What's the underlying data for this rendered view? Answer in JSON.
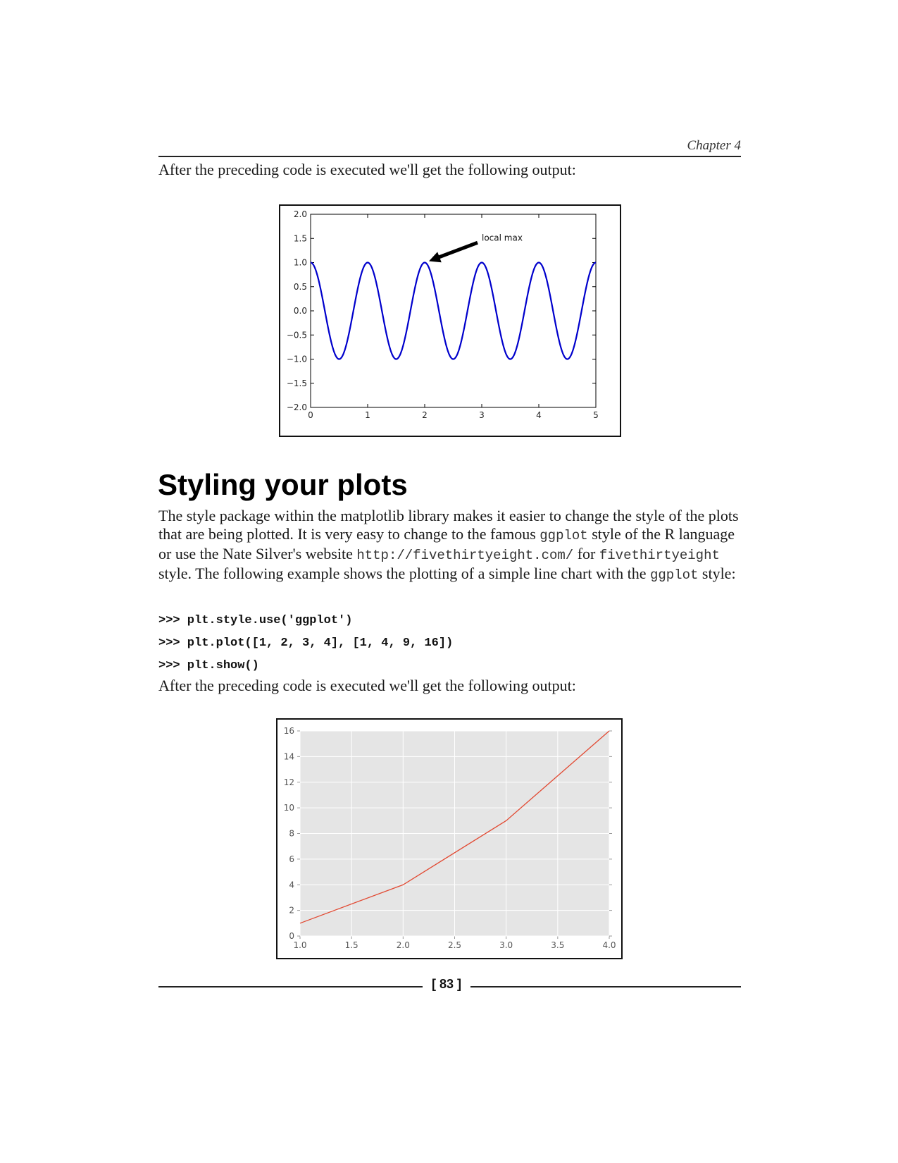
{
  "header": {
    "chapter": "Chapter 4"
  },
  "intro_text_1": "After the preceding code is executed we'll get the following output:",
  "section": {
    "title": "Styling your plots",
    "paragraph": {
      "t1": "The style package within the matplotlib library makes it easier to change the style of the plots that are being plotted. It is very easy to change to the famous ",
      "c1": "ggplot",
      "t2": " style of the R language or use the Nate Silver's website ",
      "c2": "http://fivethirtyeight.com/",
      "t3": " for ",
      "c3": "fivethirtyeight",
      "t4": " style. The following example shows the plotting of a simple line chart with the ",
      "c4": "ggplot",
      "t5": " style:"
    }
  },
  "code_lines": [
    ">>> plt.style.use('ggplot')",
    ">>> plt.plot([1, 2, 3, 4], [1, 4, 9, 16])",
    ">>> plt.show()"
  ],
  "intro_text_2": "After the preceding code is executed we'll get the following output:",
  "page_number": "[ 83 ]",
  "chart_data": [
    {
      "type": "line",
      "title": "",
      "xlabel": "",
      "ylabel": "",
      "function": "cos(2*pi*t)",
      "x_range": [
        0,
        5
      ],
      "xlim": [
        0,
        5
      ],
      "ylim": [
        -2,
        2
      ],
      "x_ticks": [
        "0",
        "1",
        "2",
        "3",
        "4",
        "5"
      ],
      "y_ticks": [
        "2.0",
        "1.5",
        "1.0",
        "0.5",
        "0.0",
        "−0.5",
        "−1.0",
        "−1.5",
        "−2.0"
      ],
      "grid": false,
      "series": [
        {
          "color": "#0000cc",
          "x": [
            0,
            0.25,
            0.5,
            0.75,
            1,
            1.25,
            1.5,
            1.75,
            2,
            2.25,
            2.5,
            2.75,
            3,
            3.25,
            3.5,
            3.75,
            4,
            4.25,
            4.5,
            4.75,
            5
          ],
          "y": [
            1,
            0,
            -1,
            0,
            1,
            0,
            -1,
            0,
            1,
            0,
            -1,
            0,
            1,
            0,
            -1,
            0,
            1,
            0,
            -1,
            0,
            1
          ]
        }
      ],
      "annotations": [
        {
          "text": "local max",
          "xy": [
            2,
            1
          ],
          "xytext": [
            3,
            1.5
          ]
        }
      ]
    },
    {
      "type": "line",
      "title": "",
      "xlabel": "",
      "ylabel": "",
      "style": "ggplot",
      "xlim": [
        1.0,
        4.0
      ],
      "ylim": [
        0,
        16
      ],
      "x_ticks": [
        "1.0",
        "1.5",
        "2.0",
        "2.5",
        "3.0",
        "3.5",
        "4.0"
      ],
      "y_ticks": [
        "16",
        "14",
        "12",
        "10",
        "8",
        "6",
        "4",
        "2",
        "0"
      ],
      "grid": true,
      "background": "#e5e5e5",
      "series": [
        {
          "color": "#e24a33",
          "x": [
            1,
            2,
            3,
            4
          ],
          "y": [
            1,
            4,
            9,
            16
          ]
        }
      ]
    }
  ]
}
